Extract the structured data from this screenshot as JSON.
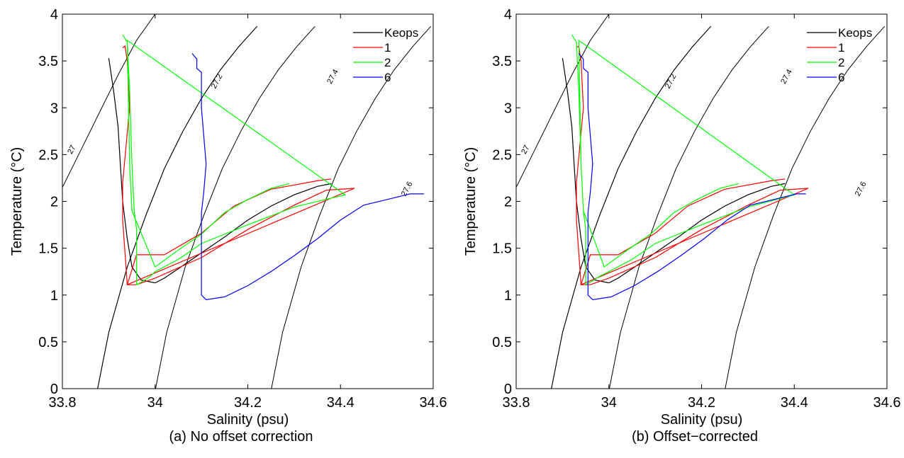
{
  "chart_data": [
    {
      "type": "line",
      "caption": "(a) No offset correction",
      "xlabel": "Salinity (psu)",
      "ylabel": "Temperature (°C)",
      "xlim": [
        33.8,
        34.6
      ],
      "ylim": [
        0,
        4
      ],
      "xticks": [
        "33.8",
        "34",
        "34.2",
        "34.4",
        "34.6"
      ],
      "yticks": [
        "0",
        "0.5",
        "1",
        "1.5",
        "2",
        "2.5",
        "3",
        "3.5",
        "4"
      ],
      "legend_position": "top-right",
      "contour_labels": [
        "27",
        "27.2",
        "27.4",
        "27.6"
      ],
      "series": [
        {
          "name": "Keops",
          "color": "#000000",
          "x": [
            33.9,
            33.91,
            33.92,
            33.925,
            33.93,
            33.94,
            33.95,
            33.97,
            34.0,
            34.02,
            34.05,
            34.1,
            34.15,
            34.2,
            34.25,
            34.3,
            34.35,
            34.38
          ],
          "y": [
            3.53,
            3.2,
            2.8,
            2.4,
            2.0,
            1.6,
            1.3,
            1.16,
            1.13,
            1.18,
            1.28,
            1.45,
            1.62,
            1.8,
            1.95,
            2.07,
            2.16,
            2.19
          ]
        },
        {
          "name": "1",
          "color": "#ff0000",
          "x": [
            33.93,
            33.935,
            33.94,
            33.945,
            33.93,
            33.93,
            33.94,
            33.96,
            34.0,
            34.1,
            34.2,
            34.3,
            34.37,
            34.43,
            33.94,
            33.96,
            34.02,
            34.1,
            34.17,
            34.25,
            34.35,
            34.38
          ],
          "y": [
            3.64,
            3.66,
            3.5,
            3.0,
            2.2,
            1.8,
            1.11,
            1.11,
            1.18,
            1.4,
            1.7,
            1.96,
            2.12,
            2.14,
            1.11,
            1.43,
            1.43,
            1.66,
            1.95,
            2.13,
            2.22,
            2.24
          ]
        },
        {
          "name": "2",
          "color": "#00ff00",
          "x": [
            33.93,
            33.94,
            33.945,
            33.95,
            33.955,
            33.96,
            33.96,
            33.975,
            33.99,
            34.0,
            34.05,
            34.1,
            34.2,
            34.3,
            34.41,
            33.94,
            33.945,
            33.95,
            34.0,
            34.05,
            34.1,
            34.15,
            34.2,
            34.25,
            34.29
          ],
          "y": [
            3.78,
            3.7,
            3.2,
            2.4,
            1.9,
            1.7,
            1.11,
            1.15,
            1.2,
            1.25,
            1.38,
            1.55,
            1.75,
            1.94,
            2.07,
            3.72,
            2.4,
            1.9,
            1.3,
            1.48,
            1.65,
            1.88,
            2.02,
            2.14,
            2.19
          ]
        },
        {
          "name": "6",
          "color": "#0000ff",
          "x": [
            34.08,
            34.09,
            34.09,
            34.1,
            34.1,
            34.11,
            34.105,
            34.1,
            34.1,
            34.11,
            34.15,
            34.2,
            34.25,
            34.3,
            34.35,
            34.4,
            34.45,
            34.5,
            34.55,
            34.58
          ],
          "y": [
            3.58,
            3.52,
            3.42,
            3.38,
            3.0,
            2.4,
            2.1,
            1.88,
            1.0,
            0.95,
            0.98,
            1.1,
            1.25,
            1.42,
            1.6,
            1.8,
            1.96,
            2.02,
            2.08,
            2.08
          ]
        }
      ]
    },
    {
      "type": "line",
      "caption": "(b) Offset−corrected",
      "xlabel": "Salinity (psu)",
      "ylabel": "Temperature (°C)",
      "xlim": [
        33.8,
        34.6
      ],
      "ylim": [
        0,
        4
      ],
      "xticks": [
        "33.8",
        "34",
        "34.2",
        "34.4",
        "34.6"
      ],
      "yticks": [
        "0",
        "0.5",
        "1",
        "1.5",
        "2",
        "2.5",
        "3",
        "3.5",
        "4"
      ],
      "legend_position": "top-right",
      "contour_labels": [
        "27",
        "27.2",
        "27.4",
        "27.6"
      ],
      "series": [
        {
          "name": "Keops",
          "color": "#000000",
          "x": [
            33.9,
            33.91,
            33.92,
            33.925,
            33.93,
            33.94,
            33.95,
            33.97,
            34.0,
            34.02,
            34.05,
            34.1,
            34.15,
            34.2,
            34.25,
            34.3,
            34.35,
            34.38
          ],
          "y": [
            3.53,
            3.2,
            2.8,
            2.4,
            2.0,
            1.6,
            1.3,
            1.16,
            1.13,
            1.18,
            1.28,
            1.45,
            1.62,
            1.8,
            1.95,
            2.07,
            2.16,
            2.19
          ]
        },
        {
          "name": "1",
          "color": "#ff0000",
          "x": [
            33.93,
            33.935,
            33.94,
            33.945,
            33.93,
            33.93,
            33.94,
            33.96,
            34.0,
            34.1,
            34.2,
            34.3,
            34.37,
            34.43,
            33.94,
            33.96,
            34.02,
            34.1,
            34.17,
            34.25,
            34.35,
            34.38
          ],
          "y": [
            3.64,
            3.66,
            3.5,
            3.0,
            2.2,
            1.8,
            1.11,
            1.11,
            1.18,
            1.4,
            1.7,
            1.96,
            2.12,
            2.14,
            1.11,
            1.43,
            1.43,
            1.66,
            1.95,
            2.13,
            2.22,
            2.24
          ]
        },
        {
          "name": "2",
          "color": "#00ff00",
          "x": [
            33.92,
            33.93,
            33.935,
            33.94,
            33.945,
            33.95,
            33.95,
            33.965,
            33.98,
            34.0,
            34.05,
            34.1,
            34.2,
            34.3,
            34.4,
            33.935,
            33.94,
            33.945,
            33.99,
            34.04,
            34.09,
            34.14,
            34.19,
            34.24,
            34.28
          ],
          "y": [
            3.78,
            3.7,
            3.2,
            2.4,
            1.9,
            1.7,
            1.11,
            1.15,
            1.2,
            1.25,
            1.38,
            1.55,
            1.75,
            1.94,
            2.07,
            3.72,
            2.4,
            1.9,
            1.3,
            1.48,
            1.65,
            1.88,
            2.02,
            2.14,
            2.19
          ]
        },
        {
          "name": "6",
          "color": "#0000ff",
          "x": [
            33.935,
            33.945,
            33.945,
            33.955,
            33.955,
            33.965,
            33.96,
            33.955,
            33.955,
            33.965,
            34.005,
            34.055,
            34.105,
            34.155,
            34.205,
            34.255,
            34.305,
            34.355,
            34.405,
            34.425
          ],
          "y": [
            3.58,
            3.52,
            3.42,
            3.38,
            3.0,
            2.4,
            2.1,
            1.88,
            1.0,
            0.95,
            0.98,
            1.1,
            1.25,
            1.42,
            1.6,
            1.8,
            1.96,
            2.02,
            2.08,
            2.08
          ]
        }
      ]
    }
  ]
}
